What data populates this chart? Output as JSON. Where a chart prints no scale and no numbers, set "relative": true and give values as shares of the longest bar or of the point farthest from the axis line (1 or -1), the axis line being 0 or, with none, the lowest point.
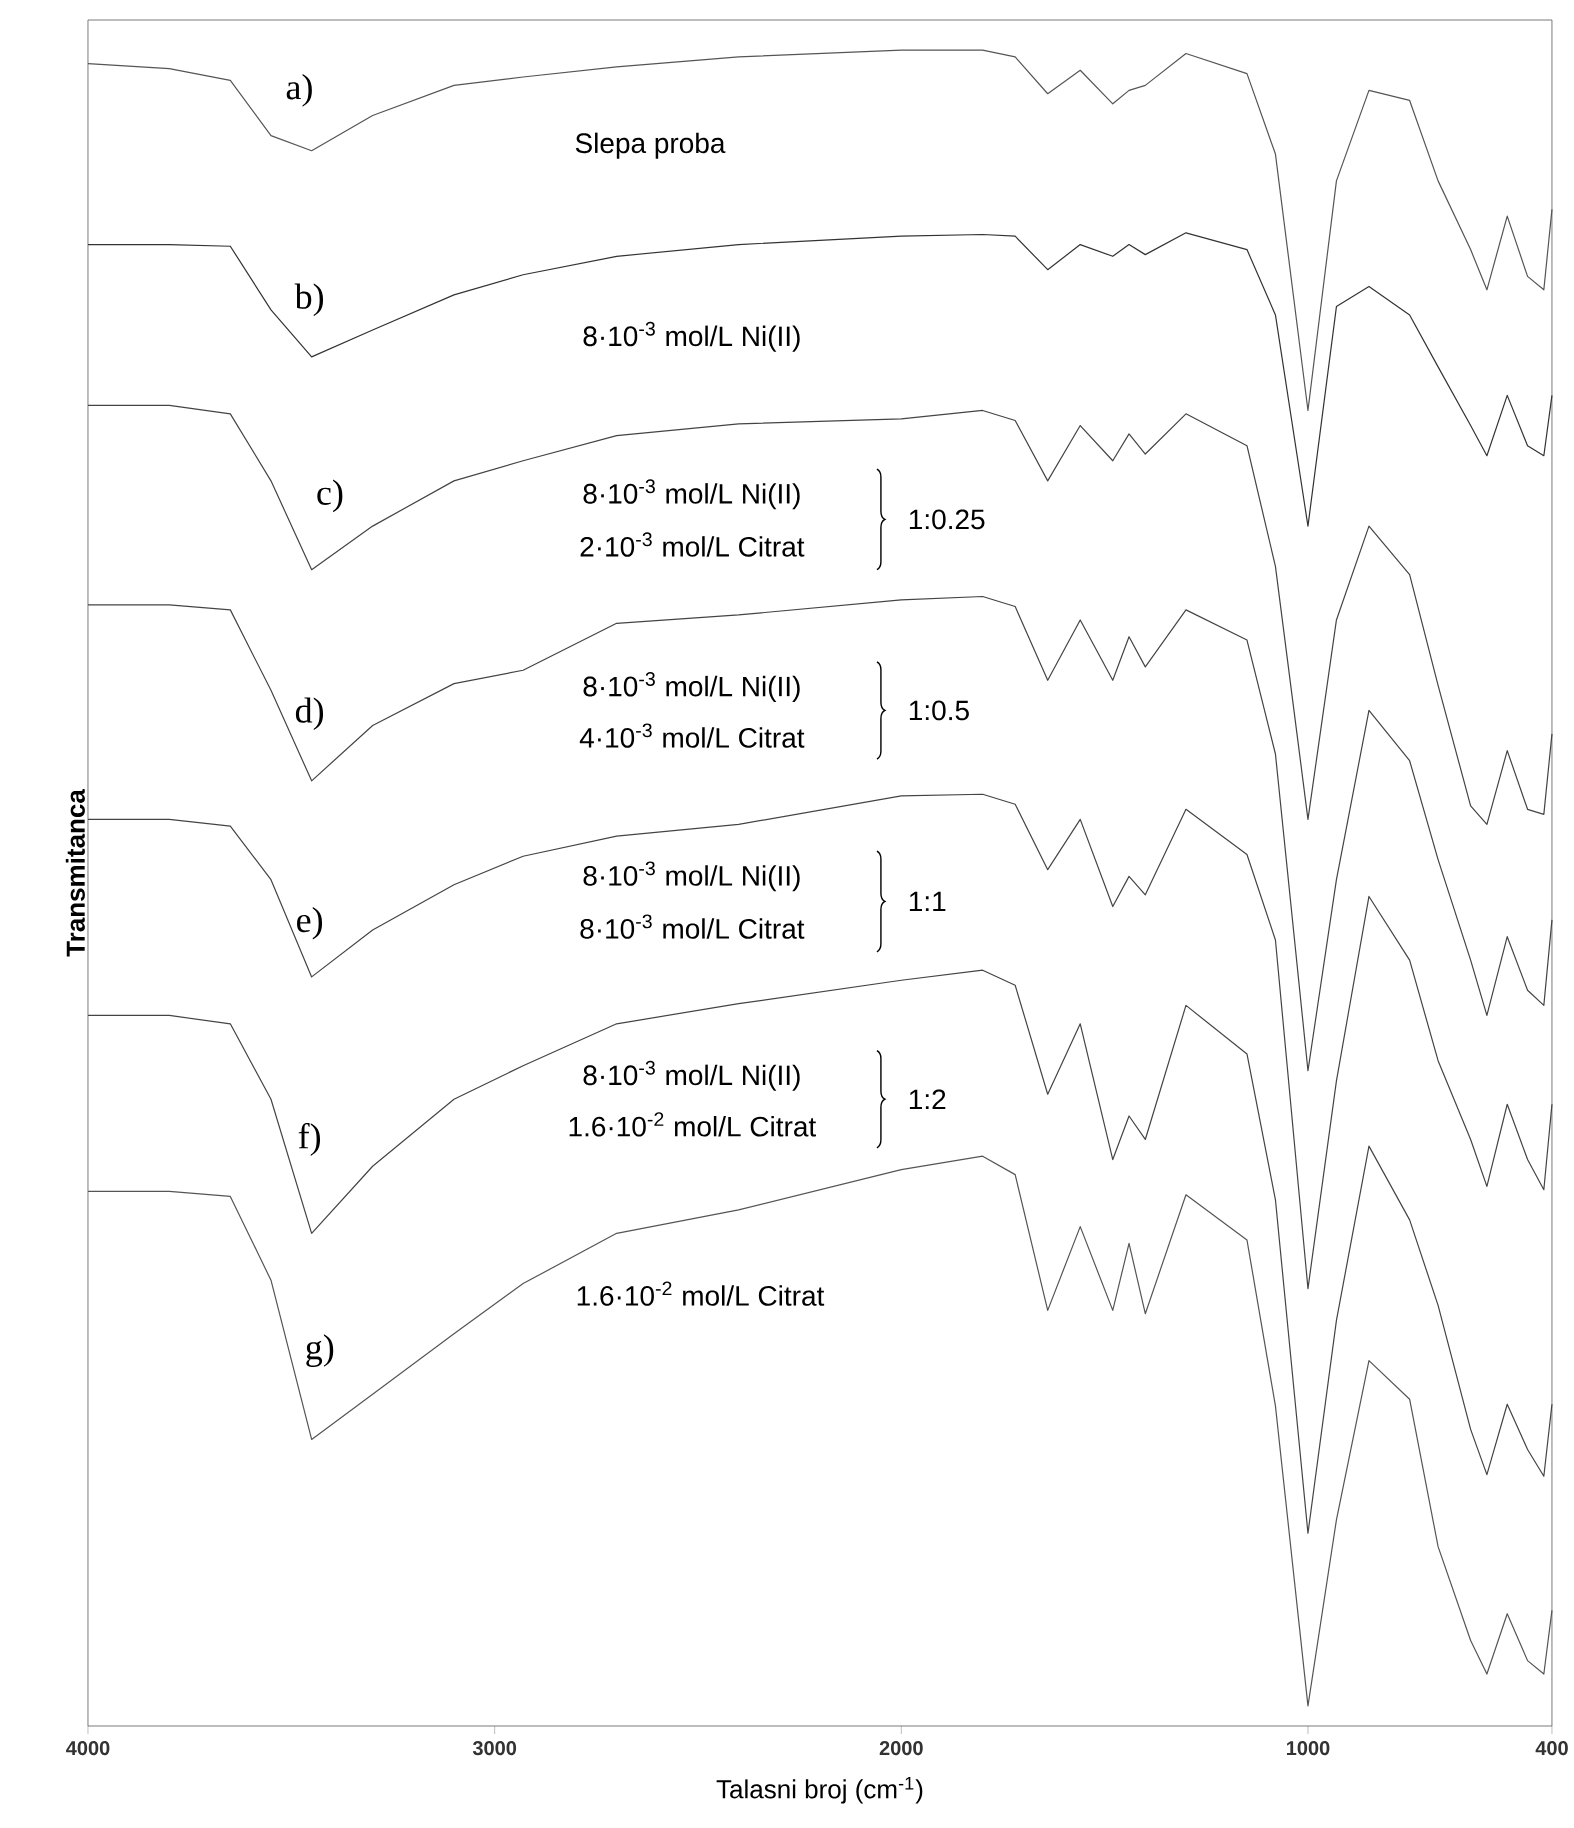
{
  "chart_data": {
    "type": "line",
    "relative": true,
    "xlabel": "Talasni broj  (cm$^{-1}$)",
    "ylabel": "Transmitanca",
    "xlim": [
      4000,
      400
    ],
    "xticks": [
      4000,
      3000,
      2000,
      1000,
      400
    ],
    "line_style": "solid",
    "x": [
      4000,
      3800,
      3650,
      3550,
      3450,
      3300,
      3100,
      2930,
      2700,
      2400,
      2000,
      1800,
      1720,
      1640,
      1560,
      1480,
      1440,
      1400,
      1300,
      1150,
      1080,
      1000,
      930,
      850,
      750,
      680,
      600,
      560,
      510,
      460,
      420,
      400
    ],
    "series": [
      {
        "name": "a)",
        "color": "#555555",
        "values": [
          0.992,
          0.989,
          0.982,
          0.949,
          0.94,
          0.961,
          0.979,
          0.984,
          0.99,
          0.996,
          1,
          1,
          0.996,
          0.974,
          0.988,
          0.968,
          0.976,
          0.979,
          0.998,
          0.986,
          0.938,
          0.785,
          0.922,
          0.976,
          0.97,
          0.922,
          0.881,
          0.857,
          0.901,
          0.865,
          0.857,
          0.905
        ]
      },
      {
        "name": "b)",
        "color": "#333333",
        "values": [
          0.884,
          0.884,
          0.883,
          0.845,
          0.817,
          0.833,
          0.854,
          0.866,
          0.877,
          0.884,
          0.889,
          0.89,
          0.889,
          0.869,
          0.884,
          0.877,
          0.884,
          0.878,
          0.891,
          0.881,
          0.842,
          0.716,
          0.847,
          0.859,
          0.842,
          0.811,
          0.776,
          0.758,
          0.794,
          0.764,
          0.758,
          0.794
        ]
      },
      {
        "name": "c)",
        "color": "#444444",
        "values": [
          0.788,
          0.788,
          0.783,
          0.743,
          0.69,
          0.716,
          0.743,
          0.755,
          0.77,
          0.777,
          0.78,
          0.785,
          0.779,
          0.743,
          0.776,
          0.755,
          0.771,
          0.759,
          0.783,
          0.764,
          0.692,
          0.541,
          0.66,
          0.716,
          0.687,
          0.621,
          0.549,
          0.538,
          0.582,
          0.547,
          0.544,
          0.592
        ]
      },
      {
        "name": "d)",
        "color": "#444444",
        "values": [
          0.669,
          0.669,
          0.666,
          0.618,
          0.564,
          0.597,
          0.622,
          0.63,
          0.658,
          0.663,
          0.672,
          0.674,
          0.668,
          0.624,
          0.66,
          0.624,
          0.65,
          0.632,
          0.666,
          0.648,
          0.58,
          0.391,
          0.505,
          0.606,
          0.576,
          0.517,
          0.457,
          0.424,
          0.471,
          0.439,
          0.43,
          0.481
        ]
      },
      {
        "name": "e)",
        "color": "#444444",
        "values": [
          0.541,
          0.541,
          0.537,
          0.505,
          0.447,
          0.475,
          0.502,
          0.519,
          0.531,
          0.538,
          0.555,
          0.556,
          0.55,
          0.511,
          0.541,
          0.489,
          0.507,
          0.496,
          0.547,
          0.52,
          0.469,
          0.261,
          0.385,
          0.495,
          0.457,
          0.397,
          0.35,
          0.322,
          0.371,
          0.338,
          0.32,
          0.371
        ]
      },
      {
        "name": "f)",
        "color": "#444444",
        "values": [
          0.424,
          0.424,
          0.419,
          0.374,
          0.294,
          0.334,
          0.374,
          0.394,
          0.419,
          0.431,
          0.445,
          0.451,
          0.442,
          0.377,
          0.419,
          0.338,
          0.364,
          0.35,
          0.43,
          0.401,
          0.314,
          0.115,
          0.242,
          0.346,
          0.302,
          0.251,
          0.177,
          0.15,
          0.192,
          0.165,
          0.149,
          0.192
        ]
      },
      {
        "name": "g)",
        "color": "#555555",
        "values": [
          0.319,
          0.319,
          0.316,
          0.266,
          0.171,
          0.198,
          0.234,
          0.264,
          0.294,
          0.308,
          0.332,
          0.34,
          0.329,
          0.248,
          0.298,
          0.248,
          0.288,
          0.246,
          0.317,
          0.29,
          0.191,
          0.012,
          0.123,
          0.218,
          0.195,
          0.107,
          0.051,
          0.031,
          0.067,
          0.039,
          0.031,
          0.069
        ]
      }
    ],
    "annotations": [
      "Slepa proba",
      "8·10$^{-3}$ mol/L Ni(II)",
      "8·10$^{-3}$ mol/L Ni(II)",
      "2·10$^{-3}$ mol/L Citrat",
      "1:0.25",
      "8·10$^{-3}$ mol/L Ni(II)",
      "4·10$^{-3}$ mol/L Citrat",
      "1:0.5",
      "8·10$^{-3}$ mol/L Ni(II)",
      "8·10$^{-3}$ mol/L Citrat",
      "1:1",
      "8·10$^{-3}$ mol/L Ni(II)",
      "1.6·10$^{-2}$ mol/L Citrat",
      "1:2",
      "1.6·10$^{-2}$ mol/L Citrat"
    ]
  }
}
